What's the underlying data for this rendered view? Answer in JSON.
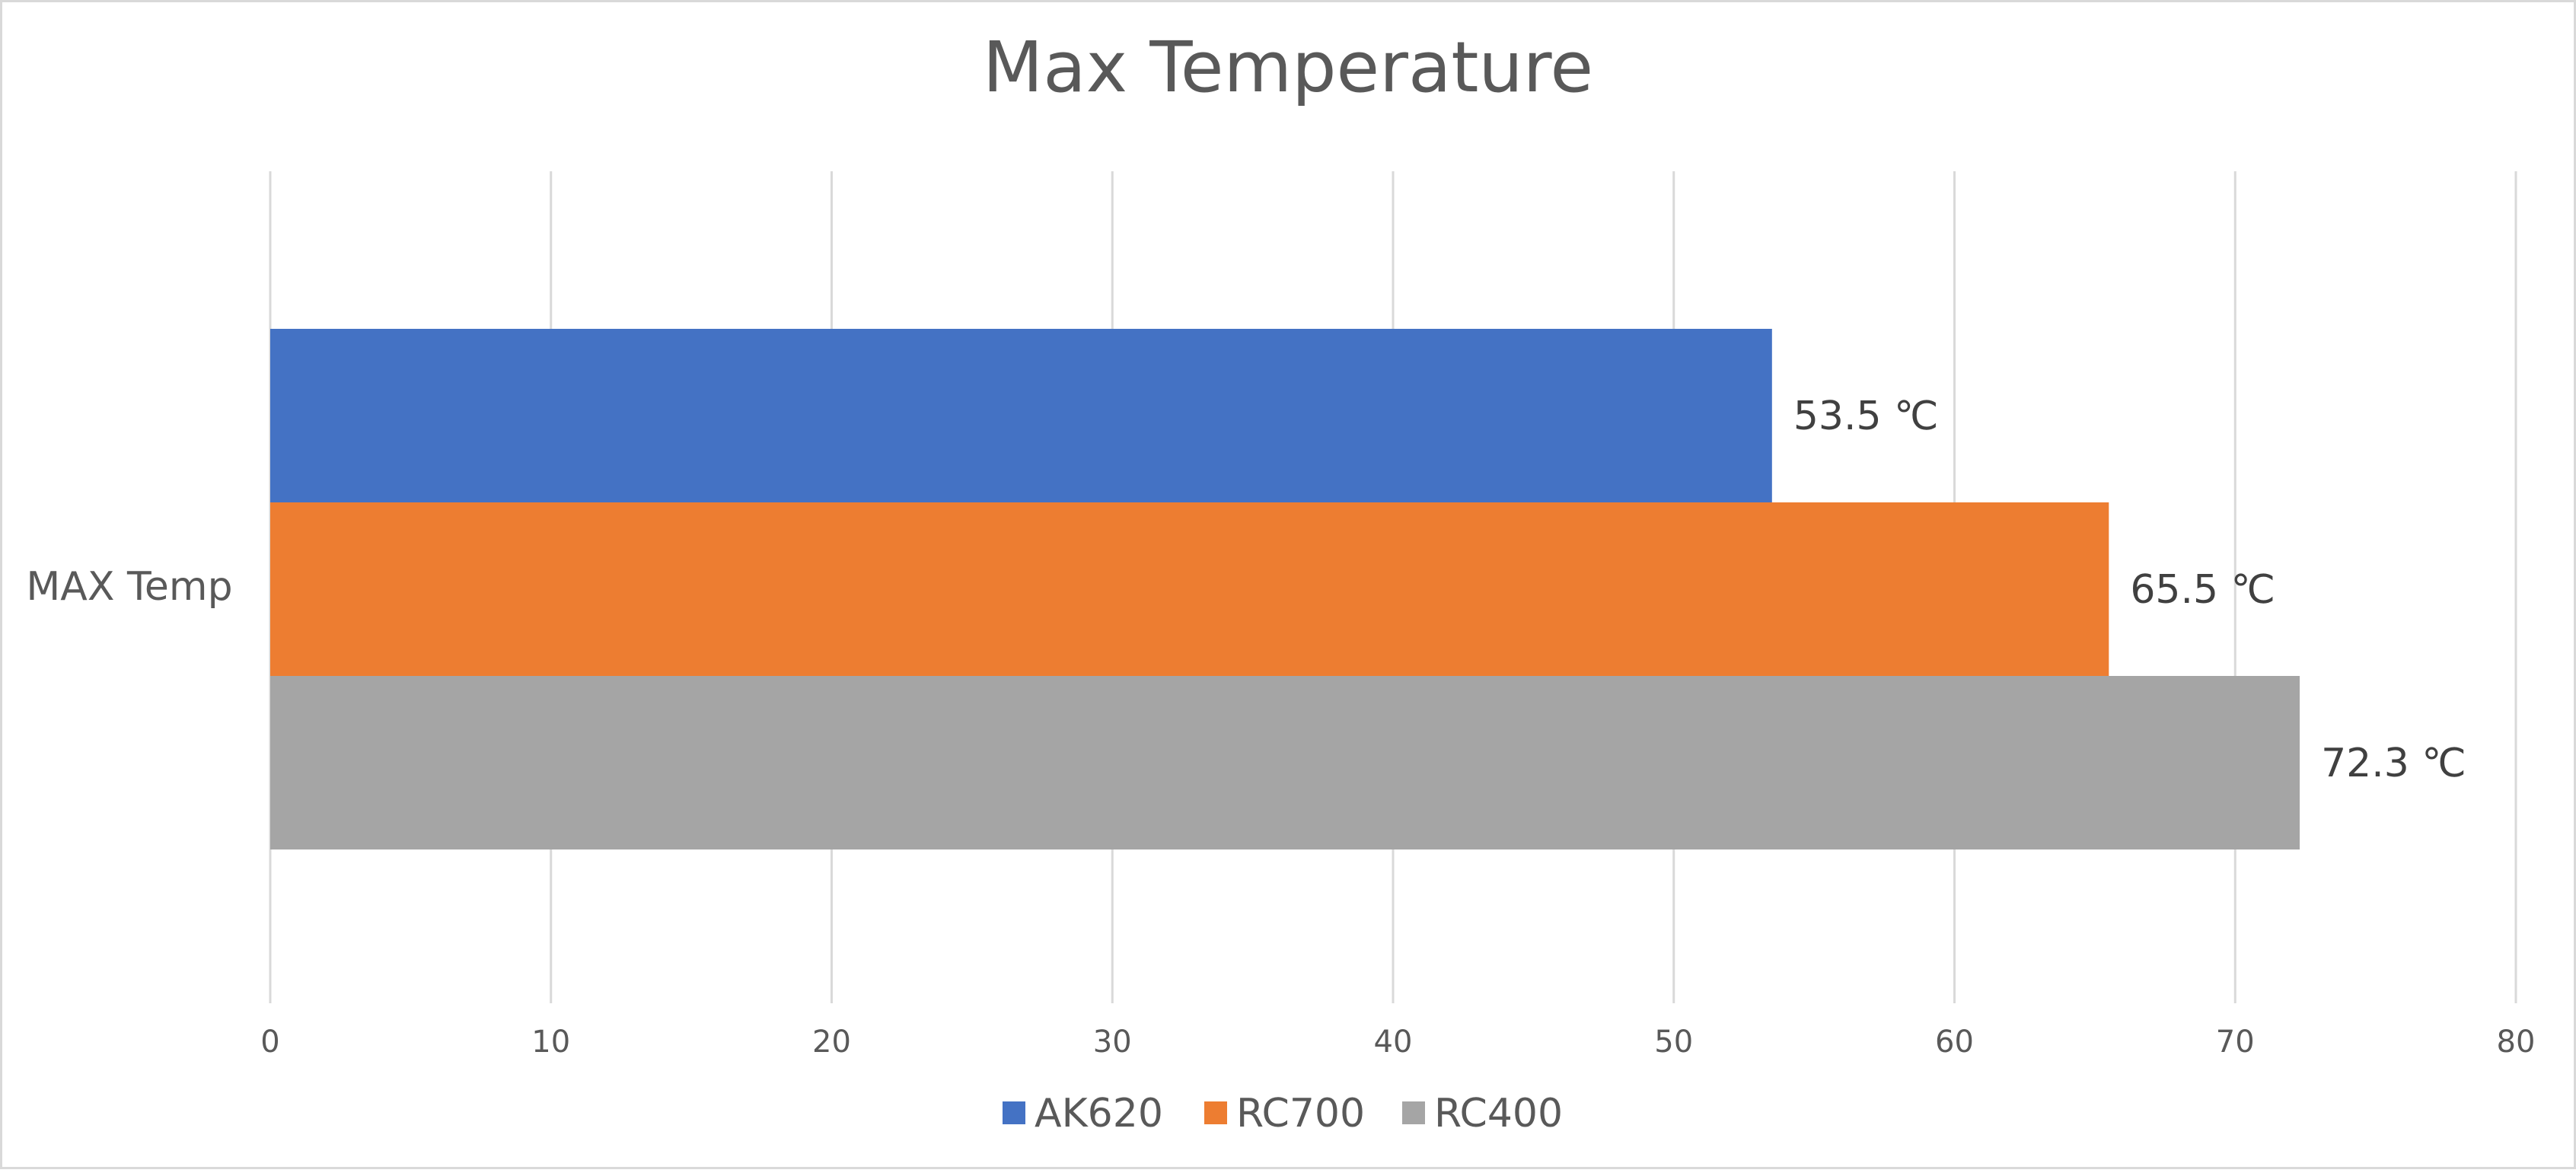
{
  "chart_data": {
    "type": "bar",
    "orientation": "horizontal",
    "title": "Max Temperature",
    "categories": [
      "MAX Temp"
    ],
    "series": [
      {
        "name": "AK620",
        "values": [
          53.5
        ],
        "label": "53.5 ℃",
        "color": "#4472C4"
      },
      {
        "name": "RC700",
        "values": [
          65.5
        ],
        "label": "65.5 ℃",
        "color": "#ED7D31"
      },
      {
        "name": "RC400",
        "values": [
          72.3
        ],
        "label": "72.3 ℃",
        "color": "#A5A5A5"
      }
    ],
    "xlim": [
      0,
      80
    ],
    "xticks": [
      "0",
      "10",
      "20",
      "30",
      "40",
      "50",
      "60",
      "70",
      "80"
    ],
    "xlabel": "",
    "ylabel": "",
    "grid": true,
    "legend": "bottom-center",
    "colors": {
      "text": "#595959",
      "grid": "#D9D9D9",
      "border": "#D9D9D9",
      "background": "#FFFFFF"
    }
  }
}
